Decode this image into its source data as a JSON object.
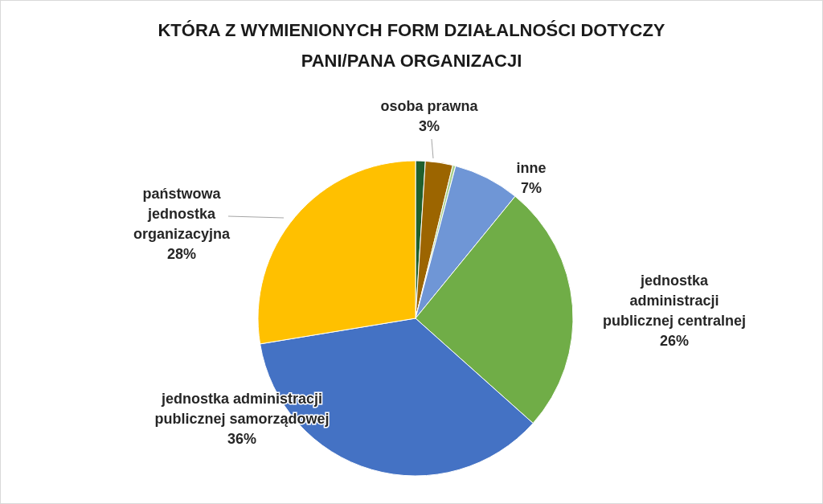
{
  "chart_data": {
    "type": "pie",
    "title": "KTÓRA Z WYMIENIONYCH FORM DZIAŁALNOŚCI DOTYCZY PANI/PANA ORGANIZACJI",
    "categories": [
      null,
      "osoba prawna",
      null,
      "inne",
      "jednostka administracji publicznej centralnej",
      "jednostka administracji publicznej samorządowej",
      "państwowa jednostka organizacyjna"
    ],
    "values": [
      1,
      2.8,
      0.3,
      6.8,
      25.7,
      35.8,
      27.6
    ],
    "value_labels": [
      null,
      "3%",
      null,
      "7%",
      "26%",
      "36%",
      "28%"
    ],
    "colors": [
      "#1f5f2c",
      "#9c6500",
      "#a9d18e",
      "#6f96d6",
      "#70ad47",
      "#4472c4",
      "#ffc000"
    ],
    "legend": false
  }
}
